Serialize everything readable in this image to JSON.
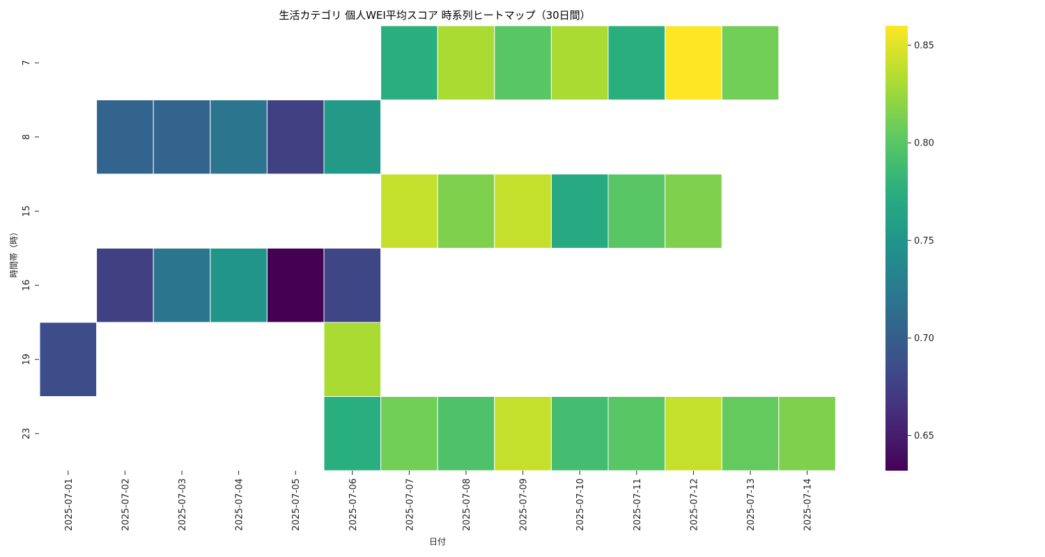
{
  "chart_data": {
    "type": "heatmap",
    "title": "生活カテゴリ 個人WEI平均スコア 時系列ヒートマップ（30日間）",
    "xlabel": "日付",
    "ylabel": "時間帯（時）",
    "x": [
      "2025-07-01",
      "2025-07-02",
      "2025-07-03",
      "2025-07-04",
      "2025-07-05",
      "2025-07-06",
      "2025-07-07",
      "2025-07-08",
      "2025-07-09",
      "2025-07-10",
      "2025-07-11",
      "2025-07-12",
      "2025-07-13",
      "2025-07-14"
    ],
    "y": [
      "7",
      "8",
      "15",
      "16",
      "19",
      "23"
    ],
    "values": [
      [
        null,
        null,
        null,
        null,
        null,
        null,
        0.775,
        0.83,
        0.8,
        0.83,
        0.775,
        0.86,
        0.81,
        null
      ],
      [
        null,
        0.705,
        0.705,
        0.72,
        0.675,
        0.755,
        null,
        null,
        null,
        null,
        null,
        null,
        null,
        null
      ],
      [
        null,
        null,
        null,
        null,
        null,
        null,
        0.84,
        0.815,
        0.84,
        0.77,
        0.8,
        0.815,
        null,
        null
      ],
      [
        null,
        0.675,
        0.72,
        0.75,
        0.632,
        0.68,
        null,
        null,
        null,
        null,
        null,
        null,
        null,
        null
      ],
      [
        0.685,
        null,
        null,
        null,
        null,
        0.83,
        null,
        null,
        null,
        null,
        null,
        null,
        null,
        null
      ],
      [
        null,
        null,
        null,
        null,
        null,
        0.775,
        0.81,
        0.795,
        0.84,
        0.79,
        0.8,
        0.84,
        0.805,
        0.815
      ]
    ],
    "colormap": "viridis",
    "vmin": 0.632,
    "vmax": 0.86,
    "colorbar_ticks": [
      "0.65",
      "0.70",
      "0.75",
      "0.80",
      "0.85"
    ]
  }
}
